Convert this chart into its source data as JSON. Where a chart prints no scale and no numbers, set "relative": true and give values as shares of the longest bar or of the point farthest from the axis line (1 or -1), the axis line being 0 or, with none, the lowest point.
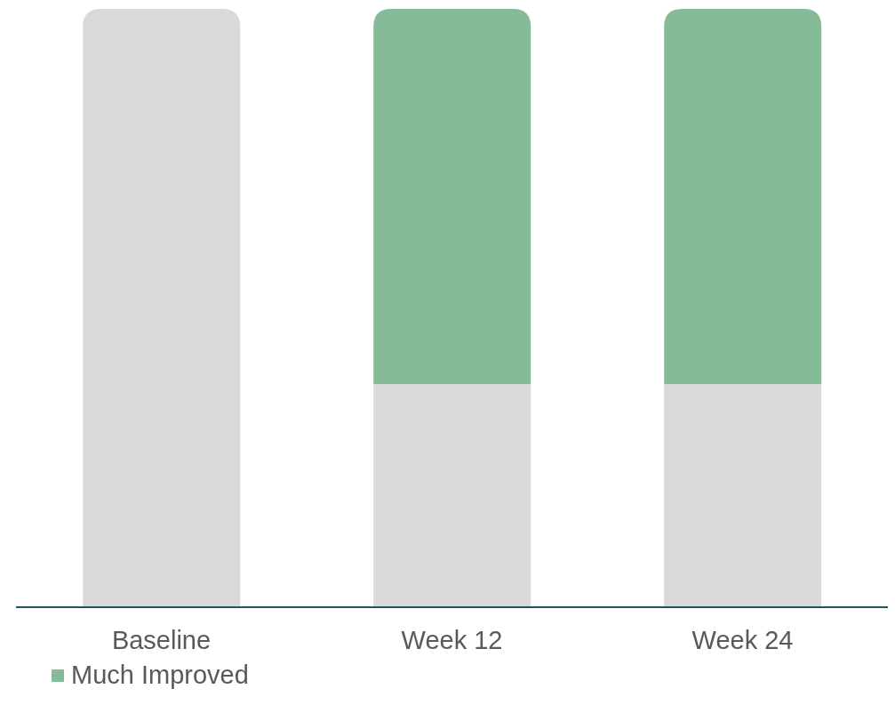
{
  "chart_data": {
    "type": "bar",
    "stacked": true,
    "relative": true,
    "categories": [
      "Baseline",
      "Week 12",
      "Week 24"
    ],
    "series": [
      {
        "color": "#d9d9d9",
        "values": [
          1,
          0.373,
          0.373
        ]
      },
      {
        "name": "Much Improved",
        "color": "#85bb96",
        "values": [
          0,
          0.627,
          0.627
        ]
      }
    ],
    "legend": "bottom left",
    "grid": false
  }
}
